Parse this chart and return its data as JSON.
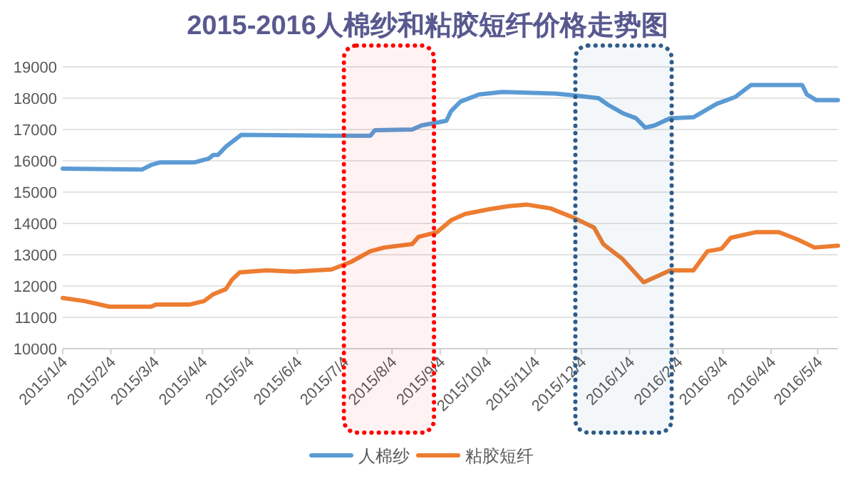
{
  "chart_data": {
    "type": "line",
    "title": "2015-2016人棉纱和粘胶短纤价格走势图",
    "xlim": [
      "2015-01-04",
      "2016-05-17"
    ],
    "xticks": [
      {
        "value": "2015-01-04",
        "label": "2015/1/4"
      },
      {
        "value": "2015-02-04",
        "label": "2015/2/4"
      },
      {
        "value": "2015-03-04",
        "label": "2015/3/4"
      },
      {
        "value": "2015-04-04",
        "label": "2015/4/4"
      },
      {
        "value": "2015-05-04",
        "label": "2015/5/4"
      },
      {
        "value": "2015-06-04",
        "label": "2015/6/4"
      },
      {
        "value": "2015-07-04",
        "label": "2015/7/4"
      },
      {
        "value": "2015-08-04",
        "label": "2015/8/4"
      },
      {
        "value": "2015-09-04",
        "label": "2015/9/4"
      },
      {
        "value": "2015-10-04",
        "label": "2015/10/4"
      },
      {
        "value": "2015-11-04",
        "label": "2015/11/4"
      },
      {
        "value": "2015-12-04",
        "label": "2015/12/4"
      },
      {
        "value": "2016-01-04",
        "label": "2016/1/4"
      },
      {
        "value": "2016-02-04",
        "label": "2016/2/4"
      },
      {
        "value": "2016-03-04",
        "label": "2016/3/4"
      },
      {
        "value": "2016-04-04",
        "label": "2016/4/4"
      },
      {
        "value": "2016-05-04",
        "label": "2016/5/4"
      }
    ],
    "ylim": [
      10000,
      19000
    ],
    "yticks": [
      10000,
      11000,
      12000,
      13000,
      14000,
      15000,
      16000,
      17000,
      18000,
      19000
    ],
    "grid": "y",
    "legend": "bottom",
    "marker": "none",
    "line_style": "solid",
    "bands": [
      {
        "axis": "x",
        "from": "2015-07-04",
        "to": "2015-08-31",
        "color": "#ff0000"
      },
      {
        "axis": "x",
        "from": "2015-11-30",
        "to": "2016-01-31",
        "color": "#2e5c8a"
      }
    ],
    "series": [
      {
        "name": "人棉纱",
        "color": "#5b9bd5",
        "x": [
          "2015-01-04",
          "2015-02-24",
          "2015-03-02",
          "2015-03-08",
          "2015-03-30",
          "2015-04-08",
          "2015-04-11",
          "2015-04-14",
          "2015-04-19",
          "2015-04-25",
          "2015-04-29",
          "2015-06-26",
          "2015-07-21",
          "2015-07-24",
          "2015-08-17",
          "2015-08-23",
          "2015-09-08",
          "2015-09-11",
          "2015-09-17",
          "2015-09-29",
          "2015-10-14",
          "2015-11-17",
          "2015-11-29",
          "2015-12-15",
          "2015-12-21",
          "2015-12-31",
          "2016-01-08",
          "2016-01-14",
          "2016-01-20",
          "2016-01-30",
          "2016-02-14",
          "2016-02-29",
          "2016-03-12",
          "2016-03-22",
          "2016-04-24",
          "2016-04-27",
          "2016-05-03",
          "2016-05-17"
        ],
        "values": [
          15750,
          15720,
          15870,
          15950,
          15950,
          16070,
          16190,
          16190,
          16450,
          16680,
          16830,
          16800,
          16800,
          16980,
          17000,
          17130,
          17280,
          17590,
          17890,
          18120,
          18200,
          18150,
          18090,
          18000,
          17790,
          17510,
          17360,
          17060,
          17130,
          17360,
          17390,
          17820,
          18040,
          18420,
          18420,
          18120,
          17940,
          17940
        ]
      },
      {
        "name": "粘胶短纤",
        "color": "#ed7d31",
        "x": [
          "2015-01-04",
          "2015-01-18",
          "2015-02-03",
          "2015-03-02",
          "2015-03-05",
          "2015-03-27",
          "2015-04-05",
          "2015-04-11",
          "2015-04-19",
          "2015-04-23",
          "2015-04-28",
          "2015-05-15",
          "2015-06-02",
          "2015-06-26",
          "2015-07-09",
          "2015-07-21",
          "2015-07-30",
          "2015-08-17",
          "2015-08-21",
          "2015-09-02",
          "2015-09-11",
          "2015-09-20",
          "2015-10-05",
          "2015-10-18",
          "2015-10-30",
          "2015-11-14",
          "2015-11-29",
          "2015-12-12",
          "2015-12-18",
          "2015-12-30",
          "2016-01-13",
          "2016-01-30",
          "2016-02-14",
          "2016-02-23",
          "2016-03-03",
          "2016-03-09",
          "2016-03-25",
          "2016-04-09",
          "2016-04-21",
          "2016-05-02",
          "2016-05-17"
        ],
        "values": [
          11620,
          11520,
          11340,
          11340,
          11410,
          11410,
          11520,
          11740,
          11900,
          12200,
          12440,
          12500,
          12460,
          12530,
          12780,
          13110,
          13230,
          13340,
          13570,
          13720,
          14100,
          14300,
          14450,
          14550,
          14600,
          14480,
          14180,
          13870,
          13340,
          12880,
          12120,
          12500,
          12500,
          13110,
          13190,
          13540,
          13720,
          13720,
          13490,
          13230,
          13290
        ]
      }
    ]
  }
}
